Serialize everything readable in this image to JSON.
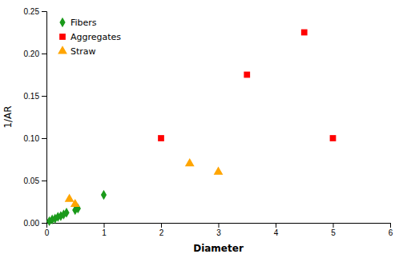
{
  "chart_data": {
    "type": "scatter",
    "xlabel": "Diameter",
    "ylabel": "1/AR",
    "series": [
      {
        "name": "Fibers",
        "color": "#1a9a1a",
        "marker": "diamond",
        "x": [
          0.05,
          0.1,
          0.15,
          0.2,
          0.25,
          0.3,
          0.35,
          0.5,
          0.55,
          1.0
        ],
        "values": [
          0.002,
          0.004,
          0.005,
          0.007,
          0.008,
          0.01,
          0.012,
          0.015,
          0.017,
          0.033
        ]
      },
      {
        "name": "Aggregates",
        "color": "#FF0000",
        "marker": "square",
        "x": [
          2.0,
          3.5,
          4.5,
          5.0
        ],
        "values": [
          0.1,
          0.175,
          0.225,
          0.1
        ]
      },
      {
        "name": "Straw",
        "color": "#FFA500",
        "marker": "triangle",
        "x": [
          0.4,
          0.5,
          2.5,
          3.0
        ],
        "values": [
          0.028,
          0.022,
          0.07,
          0.06
        ]
      }
    ],
    "xlim": [
      0,
      6
    ],
    "ylim": [
      0,
      0.25
    ],
    "xticks": [
      0,
      1,
      2,
      3,
      4,
      5,
      6
    ],
    "yticks": [
      {
        "value": 0,
        "label": "0.00"
      },
      0.05,
      {
        "value": 0.1,
        "label": "0.10"
      },
      0.15,
      {
        "value": 0.2,
        "label": "0.20"
      },
      0.25
    ],
    "grid": false,
    "legend": "upper left"
  }
}
